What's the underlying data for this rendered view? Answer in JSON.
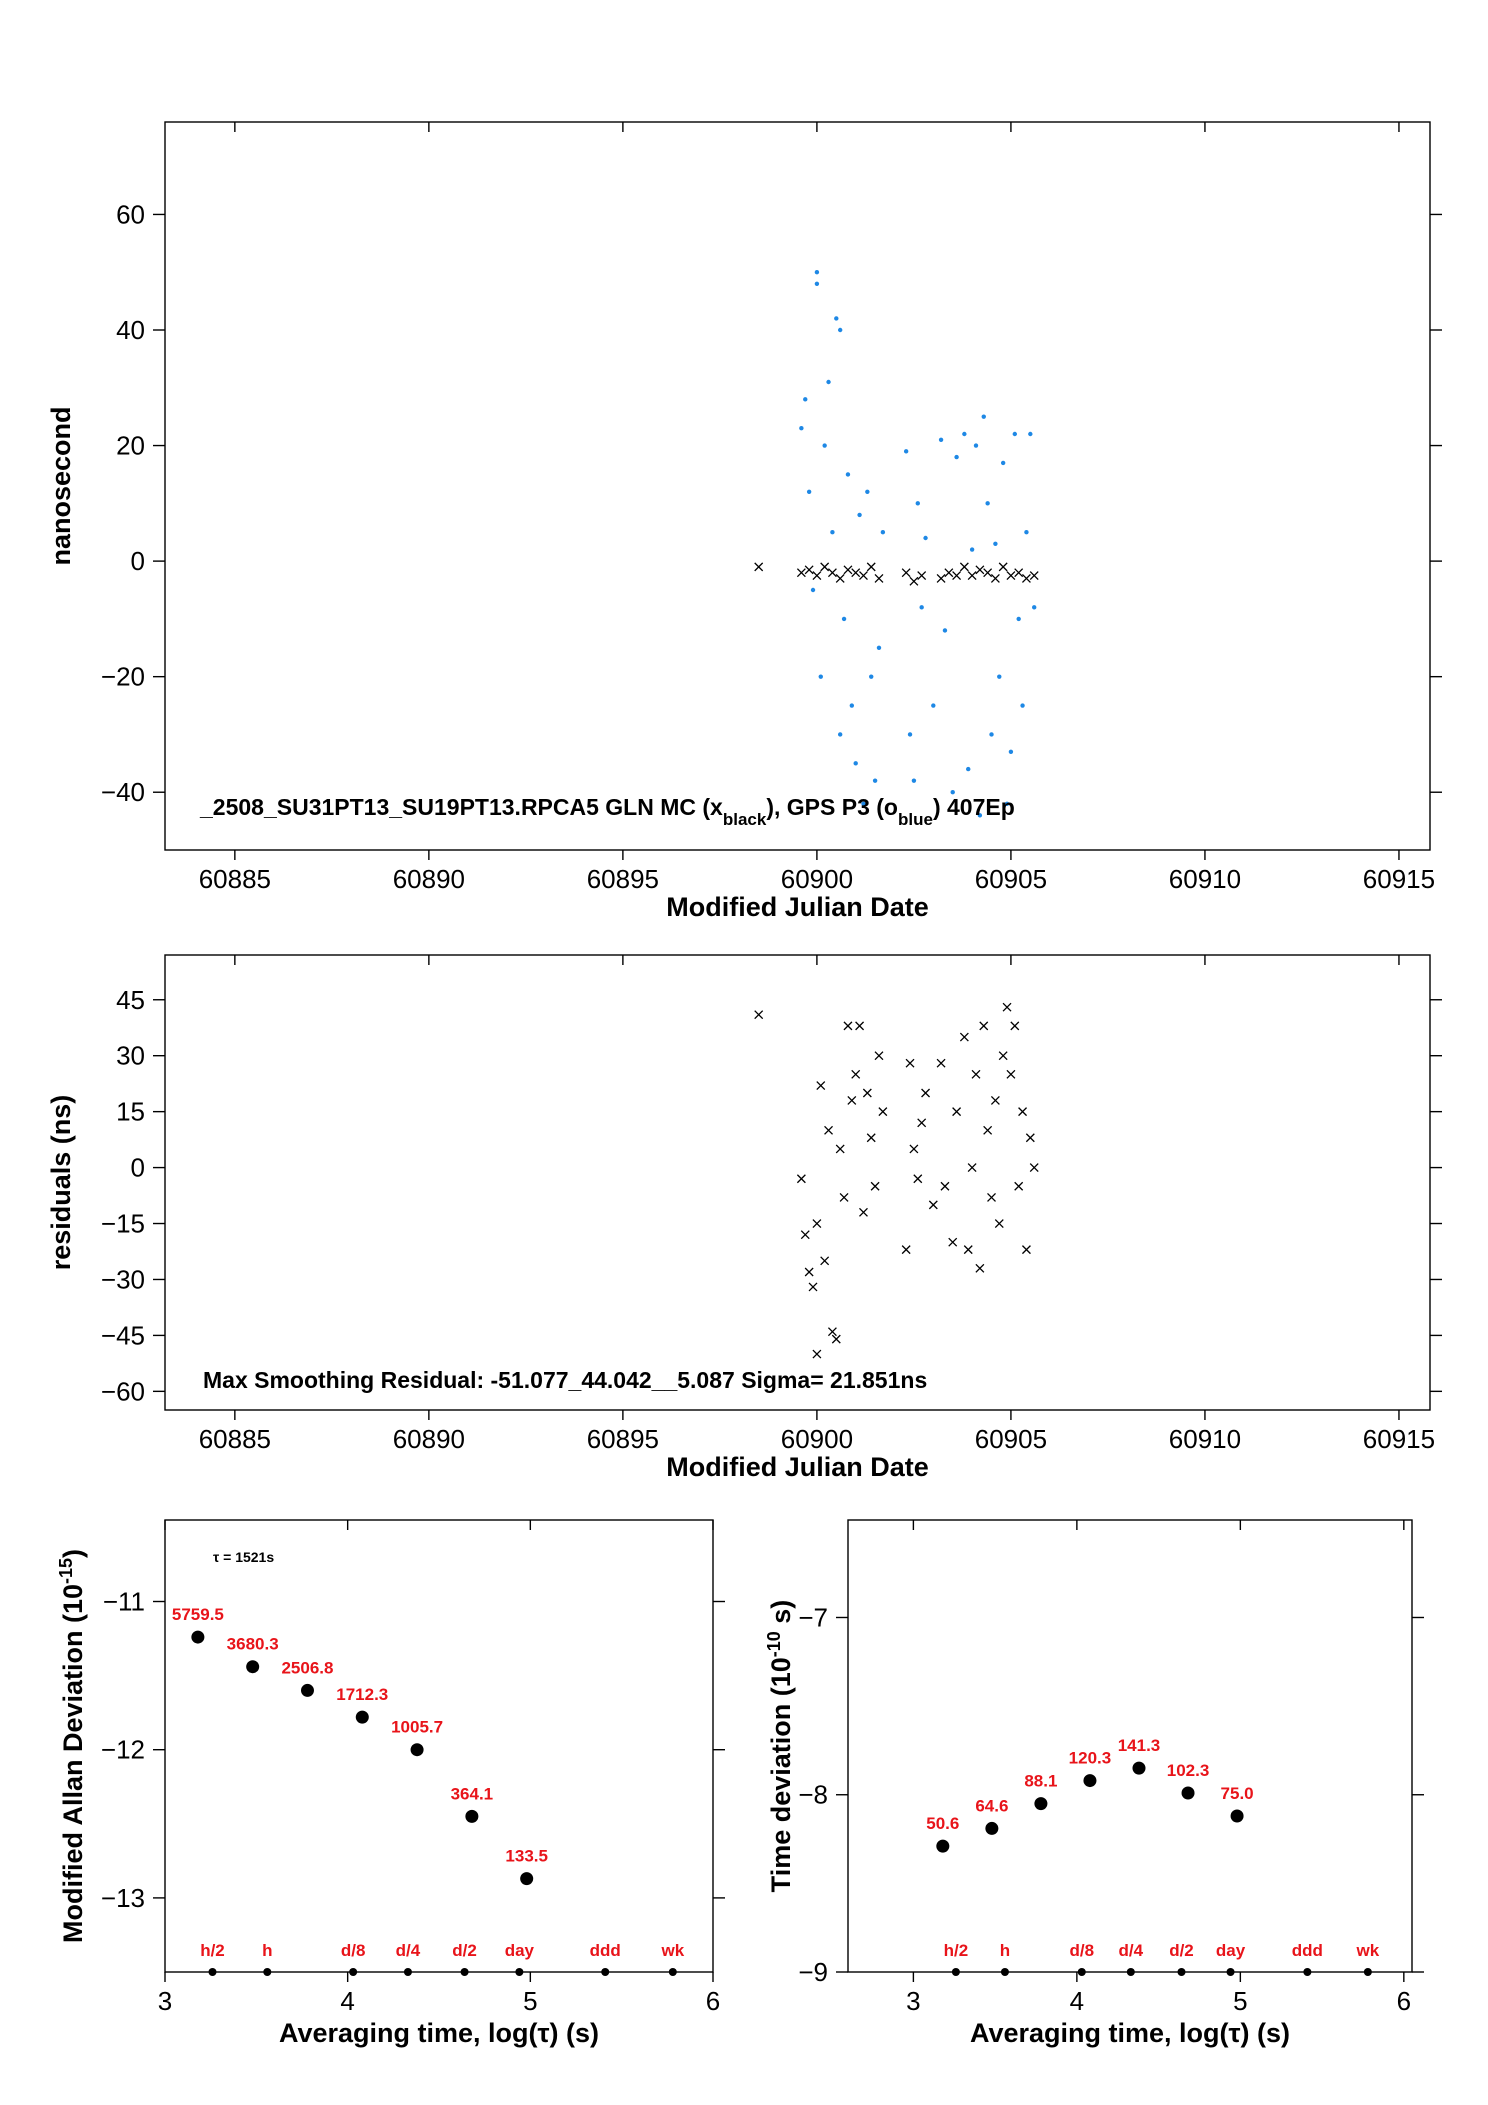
{
  "chart_data": [
    {
      "type": "scatter",
      "xlabel": "Modified Julian Date",
      "ylabel": "nanosecond",
      "xlim": [
        60883.2,
        60915.8
      ],
      "ylim": [
        -50,
        76
      ],
      "xticks": [
        60885,
        60890,
        60895,
        60900,
        60905,
        60910,
        60915
      ],
      "yticks": [
        -40,
        -20,
        0,
        20,
        40,
        60
      ],
      "annotation": "_2508_SU31PT13_SU19PT13.RPCA5     GLN MC (x",
      "annotation_sub1": "black",
      "annotation_mid": "),  GPS P3 (o",
      "annotation_sub2": "blue",
      "annotation_end": ")  407Ep",
      "series": [
        {
          "name": "GLN MC",
          "marker": "x",
          "color": "#000000",
          "x": [
            60898.5,
            60899.6,
            60899.8,
            60900.0,
            60900.2,
            60900.4,
            60900.6,
            60900.8,
            60901.0,
            60901.2,
            60901.4,
            60901.6,
            60902.3,
            60902.5,
            60902.7,
            60903.2,
            60903.4,
            60903.6,
            60903.8,
            60904.0,
            60904.2,
            60904.4,
            60904.6,
            60904.8,
            60905.0,
            60905.2,
            60905.4,
            60905.6
          ],
          "y": [
            -1,
            -2,
            -1.5,
            -2.5,
            -1,
            -2,
            -3,
            -1.5,
            -2,
            -2.5,
            -1,
            -3,
            -2,
            -3.5,
            -2.5,
            -3,
            -2,
            -2.5,
            -1,
            -2.5,
            -1.5,
            -2,
            -3,
            -1,
            -2.5,
            -2,
            -3,
            -2.5
          ]
        },
        {
          "name": "GPS P3",
          "marker": "o",
          "color": "#1e88e5",
          "x": [
            60899.6,
            60899.7,
            60899.8,
            60899.9,
            60900.0,
            60900.0,
            60900.1,
            60900.2,
            60900.3,
            60900.4,
            60900.5,
            60900.6,
            60900.6,
            60900.7,
            60900.8,
            60900.9,
            60901.0,
            60901.1,
            60901.2,
            60901.3,
            60901.4,
            60901.5,
            60901.6,
            60901.7,
            60902.3,
            60902.4,
            60902.5,
            60902.6,
            60902.7,
            60902.8,
            60903.0,
            60903.2,
            60903.3,
            60903.5,
            60903.6,
            60903.8,
            60903.9,
            60904.0,
            60904.1,
            60904.2,
            60904.3,
            60904.4,
            60904.5,
            60904.6,
            60904.7,
            60904.8,
            60904.9,
            60905.0,
            60905.1,
            60905.2,
            60905.3,
            60905.4,
            60905.5,
            60905.6
          ],
          "y": [
            23,
            28,
            12,
            -5,
            50,
            48,
            -20,
            20,
            31,
            5,
            42,
            40,
            -30,
            -10,
            15,
            -25,
            -35,
            8,
            -42,
            12,
            -20,
            -38,
            -15,
            5,
            19,
            -30,
            -38,
            10,
            -8,
            4,
            -25,
            21,
            -12,
            -40,
            18,
            22,
            -36,
            2,
            20,
            -44,
            25,
            10,
            -30,
            3,
            -20,
            17,
            -42,
            -33,
            22,
            -10,
            -25,
            5,
            22,
            -8
          ]
        }
      ]
    },
    {
      "type": "scatter",
      "xlabel": "Modified Julian Date",
      "ylabel": "residuals (ns)",
      "xlim": [
        60883.2,
        60915.8
      ],
      "ylim": [
        -65,
        57
      ],
      "xticks": [
        60885,
        60890,
        60895,
        60900,
        60905,
        60910,
        60915
      ],
      "yticks": [
        -60,
        -45,
        -30,
        -15,
        0,
        15,
        30,
        45
      ],
      "annotation": "Max Smoothing Residual: -51.077_44.042__5.087  Sigma= 21.851ns",
      "series": [
        {
          "name": "residuals",
          "marker": "x",
          "color": "#000000",
          "x": [
            60898.5,
            60899.6,
            60899.7,
            60899.8,
            60899.9,
            60900.0,
            60900.0,
            60900.1,
            60900.2,
            60900.3,
            60900.4,
            60900.5,
            60900.6,
            60900.7,
            60900.8,
            60900.9,
            60901.0,
            60901.1,
            60901.2,
            60901.3,
            60901.4,
            60901.5,
            60901.6,
            60901.7,
            60902.3,
            60902.4,
            60902.5,
            60902.6,
            60902.7,
            60902.8,
            60903.0,
            60903.2,
            60903.3,
            60903.5,
            60903.6,
            60903.8,
            60903.9,
            60904.0,
            60904.1,
            60904.2,
            60904.3,
            60904.4,
            60904.5,
            60904.6,
            60904.7,
            60904.8,
            60904.9,
            60905.0,
            60905.1,
            60905.2,
            60905.3,
            60905.4,
            60905.5,
            60905.6
          ],
          "y": [
            41,
            -3,
            -18,
            -28,
            -32,
            -50,
            -15,
            22,
            -25,
            10,
            -44,
            -46,
            5,
            -8,
            38,
            18,
            25,
            38,
            -12,
            20,
            8,
            -5,
            30,
            15,
            -22,
            28,
            5,
            -3,
            12,
            20,
            -10,
            28,
            -5,
            -20,
            15,
            35,
            -22,
            0,
            25,
            -27,
            38,
            10,
            -8,
            18,
            -15,
            30,
            43,
            25,
            38,
            -5,
            15,
            -22,
            8,
            0
          ]
        }
      ]
    },
    {
      "type": "scatter",
      "xlabel": "Averaging time, log(τ) (s)",
      "ylabel": "Modified Allan Deviation (10",
      "ylabel_sup": "-15",
      "ylabel_end": ")",
      "xlim": [
        3,
        6
      ],
      "ylim": [
        -13.5,
        -10.45
      ],
      "xticks": [
        3,
        4,
        5,
        6
      ],
      "yticks": [
        -13,
        -12,
        -11
      ],
      "annotation": "τ = 1521s",
      "x": [
        3.18,
        3.48,
        3.78,
        4.08,
        4.38,
        4.68,
        4.98
      ],
      "y": [
        -11.24,
        -11.44,
        -11.6,
        -11.78,
        -12.0,
        -12.45,
        -12.87
      ],
      "data_labels": [
        "5759.5",
        "3680.3",
        "2506.8",
        "1712.3",
        "1005.7",
        "364.1",
        "133.5"
      ],
      "marker_labels": [
        "h/2",
        "h",
        "d/8",
        "d/4",
        "d/2",
        "day",
        "ddd",
        "wk"
      ],
      "marker_x": [
        3.26,
        3.56,
        4.03,
        4.33,
        4.64,
        4.94,
        5.41,
        5.78
      ]
    },
    {
      "type": "scatter",
      "xlabel": "Averaging time, log(τ) (s)",
      "ylabel": "Time deviation (10",
      "ylabel_sup": "-10",
      "ylabel_end": " s)",
      "xlim": [
        2.6,
        6.05
      ],
      "ylim": [
        -9,
        -6.45
      ],
      "xticks": [
        3,
        4,
        5,
        6
      ],
      "yticks": [
        -9,
        -8,
        -7
      ],
      "x": [
        3.18,
        3.48,
        3.78,
        4.08,
        4.38,
        4.68,
        4.98
      ],
      "y": [
        -8.29,
        -8.19,
        -8.05,
        -7.92,
        -7.85,
        -7.99,
        -8.12
      ],
      "data_labels": [
        "50.6",
        "64.6",
        "88.1",
        "120.3",
        "141.3",
        "102.3",
        "75.0"
      ],
      "marker_labels": [
        "h/2",
        "h",
        "d/8",
        "d/4",
        "d/2",
        "day",
        "ddd",
        "wk"
      ],
      "marker_x": [
        3.26,
        3.56,
        4.03,
        4.33,
        4.64,
        4.94,
        5.41,
        5.78
      ]
    }
  ]
}
